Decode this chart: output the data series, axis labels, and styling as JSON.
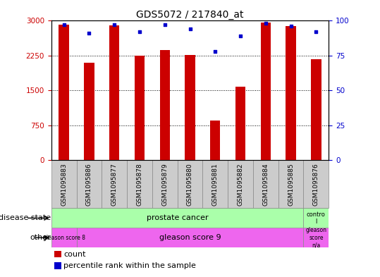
{
  "title": "GDS5072 / 217840_at",
  "samples": [
    "GSM1095883",
    "GSM1095886",
    "GSM1095877",
    "GSM1095878",
    "GSM1095879",
    "GSM1095880",
    "GSM1095881",
    "GSM1095882",
    "GSM1095884",
    "GSM1095885",
    "GSM1095876"
  ],
  "counts": [
    2920,
    2100,
    2900,
    2250,
    2370,
    2260,
    850,
    1590,
    2960,
    2880,
    2180
  ],
  "percentiles": [
    97,
    91,
    97,
    92,
    97,
    94,
    78,
    89,
    98,
    96,
    92
  ],
  "ylim_left": [
    0,
    3000
  ],
  "ylim_right": [
    0,
    100
  ],
  "yticks_left": [
    0,
    750,
    1500,
    2250,
    3000
  ],
  "yticks_right": [
    0,
    25,
    50,
    75,
    100
  ],
  "bar_color": "#cc0000",
  "dot_color": "#0000cc",
  "bar_width": 0.4,
  "bg_color": "#ffffff",
  "tick_box_color": "#cccccc",
  "ds_color_cancer": "#aaffaa",
  "ds_color_control": "#aaffaa",
  "ot_color": "#ee66ee",
  "border_color": "#888888"
}
